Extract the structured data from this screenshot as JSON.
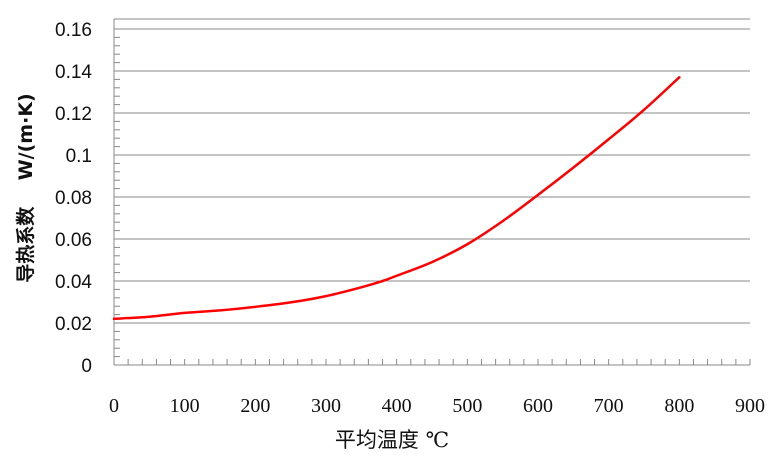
{
  "chart_data": {
    "type": "line",
    "title": "",
    "xlabel": "平均温度 ℃",
    "ylabel": "导热系数    W/(m·K)",
    "xlim": [
      0,
      900
    ],
    "ylim": [
      0,
      0.16
    ],
    "xticks": [
      "0",
      "100",
      "200",
      "300",
      "400",
      "500",
      "600",
      "700",
      "800",
      "900"
    ],
    "yticks": [
      "0",
      "0.02",
      "0.04",
      "0.06",
      "0.08",
      "0.1",
      "0.12",
      "0.14",
      "0.16"
    ],
    "grid": "horizontal major",
    "legend": "none",
    "series": [
      {
        "color": "#ff0000",
        "x": [
          0,
          50,
          100,
          150,
          200,
          250,
          300,
          350,
          380,
          400,
          450,
          500,
          550,
          600,
          650,
          700,
          750,
          800
        ],
        "y": [
          0.022,
          0.023,
          0.0248,
          0.026,
          0.0277,
          0.0298,
          0.0328,
          0.037,
          0.04,
          0.0425,
          0.049,
          0.0575,
          0.0685,
          0.081,
          0.094,
          0.1075,
          0.1215,
          0.137
        ]
      }
    ]
  }
}
